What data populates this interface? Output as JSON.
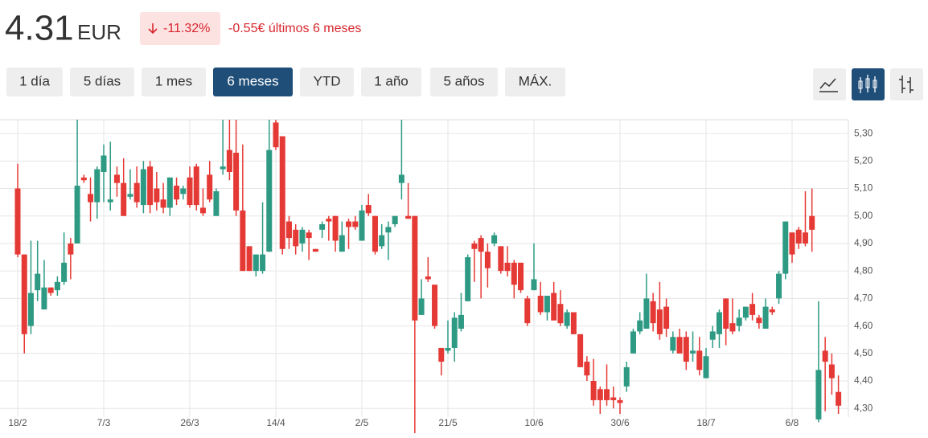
{
  "header": {
    "price": "4.31",
    "currency": "EUR",
    "change_pct": "-11.32%",
    "change_text": "-0.55€ últimos 6 meses"
  },
  "periods": [
    "1 día",
    "5 días",
    "1 mes",
    "6 meses",
    "YTD",
    "1 año",
    "5 años",
    "MÁX."
  ],
  "selected_period": 3,
  "chart_data": {
    "type": "candlestick",
    "up_color": "#2e9a84",
    "down_color": "#e53935",
    "grid": true,
    "ylim": [
      4.21,
      5.35
    ],
    "yticks": [
      {
        "value": 4.3,
        "label": "4,30"
      },
      {
        "value": 4.4,
        "label": "4,40"
      },
      {
        "value": 4.5,
        "label": "4,50"
      },
      {
        "value": 4.6,
        "label": "4,60"
      },
      {
        "value": 4.7,
        "label": "4,70"
      },
      {
        "value": 4.8,
        "label": "4,80"
      },
      {
        "value": 4.9,
        "label": "4,90"
      },
      {
        "value": 5.0,
        "label": "5,00"
      },
      {
        "value": 5.1,
        "label": "5,10"
      },
      {
        "value": 5.2,
        "label": "5,20"
      },
      {
        "value": 5.3,
        "label": "5,30"
      }
    ],
    "categories": [
      "18/2",
      null,
      null,
      null,
      null,
      null,
      null,
      null,
      null,
      null,
      null,
      null,
      null,
      "7/3",
      null,
      null,
      null,
      null,
      null,
      null,
      null,
      null,
      null,
      null,
      null,
      null,
      "26/3",
      null,
      null,
      null,
      null,
      null,
      null,
      null,
      null,
      null,
      null,
      null,
      null,
      "14/4",
      null,
      null,
      null,
      null,
      null,
      null,
      null,
      null,
      null,
      null,
      null,
      null,
      "2/5",
      null,
      null,
      null,
      null,
      null,
      null,
      null,
      null,
      null,
      null,
      null,
      null,
      "21/5",
      null,
      null,
      null,
      null,
      null,
      null,
      null,
      null,
      null,
      null,
      null,
      null,
      "10/6",
      null,
      null,
      null,
      null,
      null,
      null,
      null,
      null,
      null,
      null,
      null,
      null,
      "30/6",
      null,
      null,
      null,
      null,
      null,
      null,
      null,
      null,
      null,
      null,
      null,
      null,
      "18/7",
      null,
      null,
      null,
      null,
      null,
      null,
      null,
      null,
      null,
      null,
      null,
      null,
      "6/8",
      null,
      null,
      null,
      null,
      null,
      null,
      null
    ],
    "open": [
      5.1,
      4.86,
      4.6,
      4.73,
      4.66,
      4.74,
      4.73,
      4.76,
      4.9,
      4.9,
      5.14,
      5.08,
      5.05,
      5.16,
      5.05,
      5.15,
      5.12,
      5.07,
      5.12,
      5.04,
      5.18,
      5.1,
      5.06,
      5.03,
      5.11,
      5.08,
      5.14,
      5.18,
      5.03,
      5.15,
      5.0,
      5.17,
      5.24,
      5.23,
      5.02,
      4.89,
      4.8,
      4.8,
      4.87,
      5.34,
      5.29,
      4.98,
      4.95,
      4.9,
      4.94,
      4.88,
      4.95,
      4.99,
      5.0,
      4.87,
      4.98,
      4.98,
      4.91,
      5.04,
      5.0,
      4.89,
      4.94,
      4.97,
      5.12,
      5.0,
      5.0,
      4.64,
      4.78,
      4.75,
      4.52,
      4.51,
      4.52,
      4.59,
      4.69,
      4.9,
      4.92,
      4.87,
      4.9,
      4.89,
      4.83,
      4.83,
      4.83,
      4.7,
      4.73,
      4.71,
      4.65,
      4.72,
      4.68,
      4.6,
      4.65,
      4.57,
      4.47,
      4.4,
      4.37,
      4.37,
      4.34,
      4.33,
      4.38,
      4.5,
      4.58,
      4.59,
      4.69,
      4.66,
      4.67,
      4.51,
      4.56,
      4.56,
      4.5,
      4.51,
      4.41,
      4.55,
      4.57,
      4.7,
      4.61,
      4.6,
      4.63,
      4.68,
      4.63,
      4.59,
      4.66,
      4.7,
      4.79,
      4.94,
      4.95,
      4.94,
      5.0,
      4.26,
      4.51,
      4.46,
      4.36
    ],
    "high": [
      5.19,
      4.86,
      4.91,
      4.91,
      4.84,
      4.74,
      4.78,
      4.94,
      4.92,
      5.35,
      5.15,
      5.14,
      5.18,
      5.26,
      5.27,
      5.18,
      5.21,
      5.17,
      5.18,
      5.2,
      5.2,
      5.16,
      5.12,
      5.14,
      5.14,
      5.11,
      5.18,
      5.19,
      5.1,
      5.2,
      5.1,
      5.35,
      5.35,
      5.35,
      5.26,
      4.89,
      4.86,
      5.05,
      5.35,
      5.35,
      5.29,
      5.0,
      4.97,
      4.96,
      4.95,
      4.88,
      4.98,
      5.0,
      5.0,
      4.98,
      4.99,
      5.0,
      5.04,
      5.08,
      5.0,
      4.97,
      4.98,
      5.0,
      5.35,
      5.12,
      5.0,
      4.77,
      4.85,
      4.75,
      4.52,
      4.62,
      4.65,
      4.72,
      4.86,
      4.91,
      4.93,
      4.9,
      4.94,
      4.89,
      4.89,
      4.84,
      4.83,
      4.71,
      4.9,
      4.76,
      4.71,
      4.76,
      4.73,
      4.66,
      4.65,
      4.57,
      4.49,
      4.48,
      4.38,
      4.46,
      4.38,
      4.34,
      4.47,
      4.59,
      4.65,
      4.79,
      4.72,
      4.76,
      4.7,
      4.58,
      4.59,
      4.58,
      4.58,
      4.56,
      4.52,
      4.6,
      4.66,
      4.7,
      4.7,
      4.66,
      4.67,
      4.72,
      4.64,
      4.7,
      4.67,
      4.8,
      4.98,
      4.94,
      4.96,
      5.09,
      5.1,
      4.69,
      4.56,
      4.5,
      4.42
    ],
    "low": [
      4.85,
      4.5,
      4.57,
      4.69,
      4.66,
      4.71,
      4.71,
      4.75,
      4.77,
      4.9,
      5.12,
      4.98,
      4.99,
      5.05,
      5.02,
      5.07,
      5.0,
      5.06,
      5.03,
      5.01,
      5.01,
      5.02,
      5.01,
      5.0,
      5.04,
      5.06,
      5.03,
      5.02,
      5.0,
      5.05,
      5.0,
      5.15,
      5.13,
      5.0,
      4.8,
      4.8,
      4.78,
      4.79,
      4.87,
      5.24,
      4.86,
      4.88,
      4.86,
      4.87,
      4.84,
      4.87,
      4.92,
      4.91,
      4.87,
      4.87,
      4.88,
      4.95,
      4.91,
      5.0,
      4.86,
      4.88,
      4.84,
      4.96,
      5.06,
      4.99,
      4.21,
      4.64,
      4.76,
      4.59,
      4.42,
      4.5,
      4.47,
      4.58,
      4.69,
      4.76,
      4.7,
      4.74,
      4.89,
      4.79,
      4.78,
      4.7,
      4.72,
      4.6,
      4.73,
      4.64,
      4.62,
      4.62,
      4.6,
      4.59,
      4.57,
      4.45,
      4.4,
      4.31,
      4.28,
      4.31,
      4.3,
      4.28,
      4.36,
      4.5,
      4.57,
      4.59,
      4.58,
      4.55,
      4.56,
      4.5,
      4.5,
      4.44,
      4.47,
      4.42,
      4.41,
      4.52,
      4.52,
      4.53,
      4.57,
      4.58,
      4.62,
      4.62,
      4.59,
      4.59,
      4.64,
      4.68,
      4.77,
      4.83,
      4.88,
      4.89,
      4.87,
      4.25,
      4.29,
      4.35,
      4.28
    ],
    "close": [
      4.86,
      4.57,
      4.72,
      4.79,
      4.74,
      4.72,
      4.76,
      4.83,
      4.86,
      5.11,
      5.13,
      5.05,
      5.17,
      5.22,
      5.06,
      5.12,
      5.0,
      5.08,
      5.05,
      5.17,
      5.04,
      5.05,
      5.03,
      5.14,
      5.06,
      5.1,
      5.04,
      5.04,
      5.01,
      5.06,
      5.09,
      5.18,
      5.16,
      5.02,
      4.8,
      4.8,
      4.86,
      4.86,
      5.24,
      5.25,
      4.88,
      4.92,
      4.89,
      4.95,
      4.92,
      4.87,
      4.97,
      4.98,
      4.91,
      4.93,
      4.96,
      4.96,
      5.02,
      5.01,
      4.87,
      4.93,
      4.96,
      5.0,
      5.15,
      4.99,
      4.62,
      4.7,
      4.77,
      4.6,
      4.47,
      4.52,
      4.63,
      4.64,
      4.85,
      4.88,
      4.87,
      4.81,
      4.93,
      4.8,
      4.8,
      4.75,
      4.73,
      4.61,
      4.77,
      4.65,
      4.71,
      4.62,
      4.61,
      4.65,
      4.57,
      4.45,
      4.42,
      4.33,
      4.33,
      4.33,
      4.33,
      4.32,
      4.45,
      4.58,
      4.62,
      4.7,
      4.61,
      4.57,
      4.59,
      4.56,
      4.5,
      4.47,
      4.51,
      4.44,
      4.49,
      4.58,
      4.65,
      4.59,
      4.58,
      4.63,
      4.67,
      4.64,
      4.61,
      4.67,
      4.65,
      4.79,
      4.98,
      4.86,
      4.9,
      4.9,
      4.95,
      4.44,
      4.47,
      4.41,
      4.31
    ]
  }
}
